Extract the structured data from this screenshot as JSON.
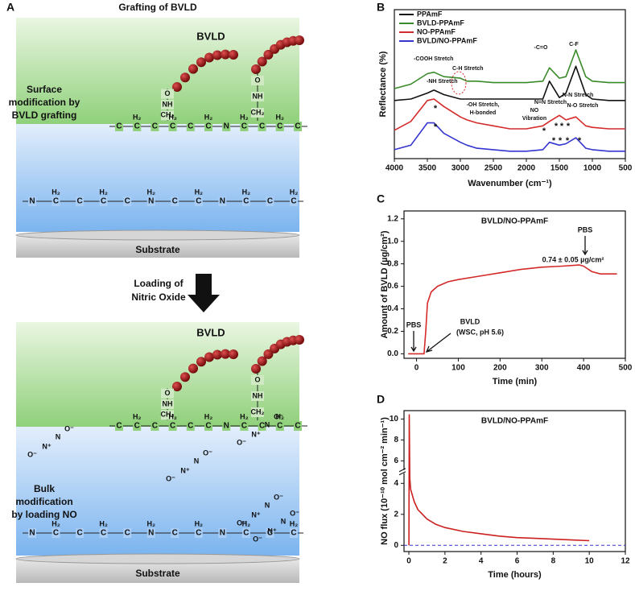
{
  "panel_labels": [
    "A",
    "B",
    "C",
    "D"
  ],
  "diagram": {
    "top_title": "Grafting of BVLD",
    "top_label": "BVLD",
    "top_side": [
      "Surface",
      "modification by",
      "BVLD grafting"
    ],
    "linker": [
      "O",
      "NH",
      "CH₂"
    ],
    "backbone": [
      "C",
      "C",
      "C",
      "C",
      "C",
      "C",
      "N",
      "C",
      "C",
      "C",
      "C"
    ],
    "chain2": [
      "N",
      "C",
      "C",
      "C",
      "C",
      "N",
      "C",
      "C",
      "N",
      "C",
      "C",
      "C"
    ],
    "h2": "H₂",
    "substrate": "Substrate",
    "arrow_label": [
      "Loading of",
      "Nitric Oxide"
    ],
    "bottom_label": "BVLD",
    "bottom_side": [
      "Bulk",
      "modification",
      "by loading NO"
    ],
    "nonoate": [
      "N⁺",
      "N",
      "O⁻",
      "O⁻"
    ],
    "bottom_substrate": "Substrate"
  },
  "chart_data": [
    {
      "type": "line",
      "xlabel": "Wavenumber (cm⁻¹)",
      "ylabel": "Reflectance (%)",
      "x": [
        4000,
        3750,
        3500,
        3400,
        3250,
        3000,
        2900,
        2750,
        2500,
        2250,
        2000,
        1750,
        1650,
        1500,
        1400,
        1250,
        1100,
        1000,
        750,
        500
      ],
      "xlim": [
        4000,
        500
      ],
      "xticks": [
        4000,
        3500,
        3000,
        2500,
        2000,
        1500,
        1000,
        500
      ],
      "ylim": [
        0,
        10
      ],
      "legend": "upper left",
      "series": [
        {
          "name": "PPAmF",
          "color": "#111111",
          "values": [
            3.9,
            4.0,
            4.4,
            4.6,
            4.3,
            4.0,
            4.0,
            4.0,
            4.0,
            4.0,
            4.0,
            4.0,
            5.2,
            4.1,
            4.4,
            6.2,
            4.3,
            4.0,
            3.9,
            3.9
          ]
        },
        {
          "name": "BVLD-PPAmF",
          "color": "#3a8a2a",
          "values": [
            4.7,
            5.0,
            5.7,
            5.8,
            5.5,
            5.4,
            5.2,
            5.2,
            5.1,
            5.1,
            5.1,
            5.2,
            6.1,
            5.4,
            5.5,
            7.3,
            5.5,
            5.2,
            5.1,
            5.1
          ]
        },
        {
          "name": "NO-PPAmF",
          "color": "#d42a2a",
          "values": [
            1.9,
            2.5,
            3.9,
            4.0,
            3.5,
            2.8,
            2.6,
            2.4,
            2.2,
            2.0,
            2.0,
            2.2,
            2.5,
            2.9,
            2.6,
            2.8,
            2.2,
            2.1,
            2.0,
            2.0
          ]
        },
        {
          "name": "BVLD/NO-PPAmF",
          "color": "#3535d0",
          "values": [
            0.6,
            0.9,
            2.4,
            2.4,
            1.7,
            1.1,
            0.9,
            0.7,
            0.6,
            0.5,
            0.5,
            0.6,
            1.1,
            0.9,
            1.0,
            1.4,
            0.7,
            0.6,
            0.5,
            0.5
          ]
        }
      ],
      "annotations": [
        "-COOH Stretch",
        "C-H Stretch",
        "-NH Stretch",
        "-C=O",
        "C-F",
        "-OH Stretch,",
        "H-bonded",
        "N-N Stretch",
        "N=N Stretch",
        "NO",
        "Vibration",
        "N-O Stretch"
      ],
      "asterisk": "*"
    },
    {
      "type": "line",
      "title": "BVLD/NO-PPAmF",
      "xlabel": "Time (min)",
      "ylabel": "Amount of BVLD (µg/cm²)",
      "x": [
        -20,
        0,
        18,
        22,
        26,
        35,
        50,
        75,
        100,
        150,
        200,
        250,
        300,
        350,
        390,
        400,
        420,
        440,
        480
      ],
      "values": [
        0,
        0,
        0,
        0.2,
        0.45,
        0.55,
        0.6,
        0.64,
        0.66,
        0.69,
        0.72,
        0.75,
        0.77,
        0.78,
        0.79,
        0.78,
        0.73,
        0.71,
        0.71
      ],
      "color": "#d42a2a",
      "xlim": [
        -30,
        500
      ],
      "xticks": [
        0,
        100,
        200,
        300,
        400,
        500
      ],
      "ylim": [
        -0.04,
        1.27
      ],
      "yticks": [
        {
          "value": 0,
          "label": "0.0"
        },
        0.2,
        0.4,
        0.6,
        0.8,
        {
          "value": 1,
          "label": "1.0"
        },
        1.2
      ],
      "annotations": [
        "PBS",
        "BVLD",
        "(WSC, pH 5.6)",
        "PBS",
        "0.74 ± 0.05 µg/cm²"
      ]
    },
    {
      "type": "line",
      "title": "BVLD/NO-PPAmF",
      "xlabel": "Time (hours)",
      "ylabel": "NO flux (10⁻¹⁰ mol cm⁻² min⁻¹)",
      "x": [
        0,
        0.02,
        0.05,
        0.1,
        0.3,
        0.5,
        1,
        1.5,
        2,
        3,
        4,
        5,
        6,
        7,
        8,
        9,
        10
      ],
      "values": [
        0,
        10.4,
        4.3,
        3.6,
        2.8,
        2.3,
        1.7,
        1.35,
        1.15,
        0.9,
        0.75,
        0.6,
        0.5,
        0.45,
        0.4,
        0.35,
        0.3
      ],
      "color": "#cc2020",
      "xlim": [
        -0.27,
        12
      ],
      "xticks": [
        0,
        2,
        4,
        6,
        8,
        10,
        12
      ],
      "ylim": [
        -0.4,
        10.8
      ],
      "y_break": [
        4.6,
        5.2
      ],
      "yticks": [
        0,
        2,
        4,
        6,
        8,
        10
      ]
    }
  ]
}
